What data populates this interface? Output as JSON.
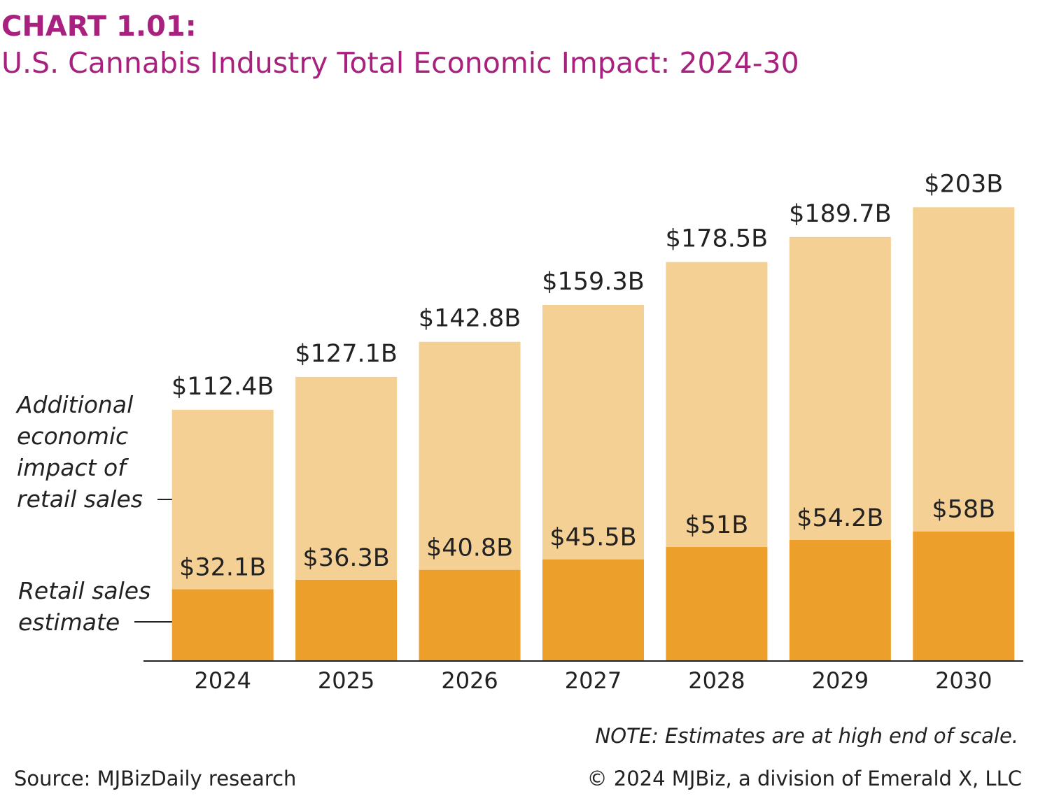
{
  "chart_data": {
    "type": "stacked_bar",
    "title": "CHART 1.01:",
    "subtitle": "U.S. Cannabis Industry Total Economic Impact: 2024-30",
    "categories": [
      "2024",
      "2025",
      "2026",
      "2027",
      "2028",
      "2029",
      "2030"
    ],
    "series": [
      {
        "name": "Retail sales estimate",
        "color": "#ec9f2b",
        "values": [
          32.1,
          36.3,
          40.8,
          45.5,
          51,
          54.2,
          58
        ],
        "value_labels": [
          "$32.1B",
          "$36.3B",
          "$40.8B",
          "$45.5B",
          "$51B",
          "$54.2B",
          "$58B"
        ]
      },
      {
        "name": "Additional economic impact of retail sales",
        "color": "#f5d095",
        "values": [
          80.3,
          90.8,
          102,
          113.8,
          127.5,
          135.5,
          145
        ]
      }
    ],
    "totals": {
      "values": [
        112.4,
        127.1,
        142.8,
        159.3,
        178.5,
        189.7,
        203
      ],
      "value_labels": [
        "$112.4B",
        "$127.1B",
        "$142.8B",
        "$159.3B",
        "$178.5B",
        "$189.7B",
        "$203B"
      ]
    },
    "ylim": [
      0,
      220
    ],
    "note": "NOTE: Estimates are at high end of scale.",
    "source": "Source: MJBizDaily research",
    "copyright": "© 2024 MJBiz, a division of Emerald X, LLC"
  }
}
